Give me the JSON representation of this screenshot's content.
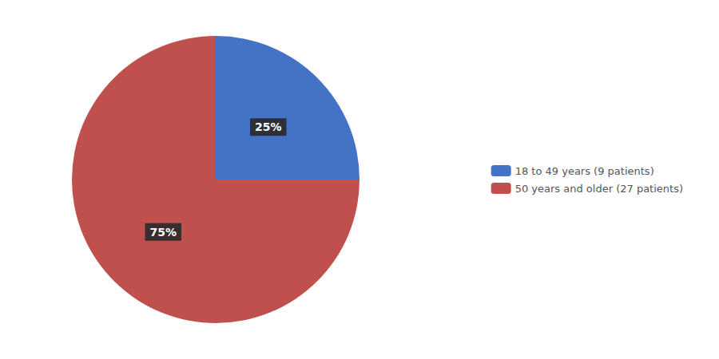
{
  "chart_data": {
    "type": "pie",
    "categories": [
      "18 to 49 years (9 patients)",
      "50 years and older (27 patients)"
    ],
    "values": [
      25,
      75
    ],
    "value_labels": [
      "25%",
      "75%"
    ],
    "colors": [
      "#4472C4",
      "#C0504D"
    ],
    "data_labels": true,
    "legend": "right"
  }
}
